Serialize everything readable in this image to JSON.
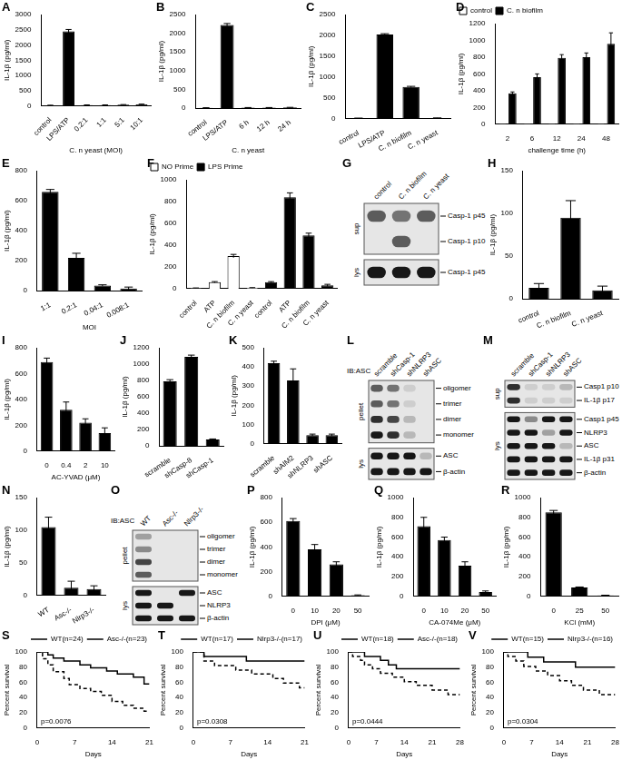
{
  "chart_data": [
    {
      "title": "A",
      "type": "bar",
      "categories": [
        "control",
        "LPS/ATP",
        "0.2:1",
        "1:1",
        "5:1",
        "10:1"
      ],
      "values": [
        20,
        2450,
        30,
        30,
        40,
        50
      ],
      "errors": [
        5,
        60,
        5,
        5,
        5,
        10
      ],
      "color": "#000000",
      "xlabel": "C. n yeast (MOI)",
      "ylabel": "IL-1β (pg/ml)",
      "ylim": [
        0,
        3000
      ],
      "yticks": [
        0,
        500,
        1000,
        1500,
        2000,
        2500,
        3000
      ],
      "grid": false
    },
    {
      "title": "B",
      "type": "bar",
      "categories": [
        "control",
        "LPS/ATP",
        "6 h",
        "12 h",
        "24 h"
      ],
      "values": [
        10,
        2220,
        15,
        15,
        20
      ],
      "errors": [
        3,
        40,
        3,
        3,
        3
      ],
      "color": "#000000",
      "xlabel": "C. n yeast",
      "ylabel": "IL-1β (pg/ml)",
      "ylim": [
        0,
        2500
      ],
      "yticks": [
        0,
        500,
        1000,
        1500,
        2000,
        2500
      ],
      "grid": false
    },
    {
      "title": "C",
      "type": "bar",
      "categories": [
        "control",
        "LPS/ATP",
        "C. n biofilm",
        "C. n yeast"
      ],
      "values": [
        10,
        2020,
        760,
        15
      ],
      "errors": [
        3,
        20,
        15,
        3
      ],
      "color": "#000000",
      "ylabel": "IL-1β (pg/ml)",
      "ylim": [
        0,
        2500
      ],
      "yticks": [
        0,
        500,
        1000,
        1500,
        2000,
        2500
      ],
      "grid": false
    },
    {
      "title": "D",
      "type": "bar",
      "categories": [
        "2",
        "6",
        "12",
        "24",
        "48"
      ],
      "series": [
        {
          "name": "control",
          "color": "#ffffff",
          "values": [
            5,
            5,
            5,
            5,
            5
          ],
          "errors": [
            0,
            0,
            0,
            0,
            0
          ]
        },
        {
          "name": "C. n biofilm",
          "color": "#000000",
          "values": [
            370,
            560,
            790,
            800,
            960
          ],
          "errors": [
            15,
            40,
            40,
            50,
            130
          ]
        }
      ],
      "xlabel": "challenge time (h)",
      "ylabel": "IL-1β (pg/ml)",
      "ylim": [
        0,
        1200
      ],
      "yticks": [
        0,
        200,
        400,
        600,
        800,
        1000,
        1200
      ],
      "grid": false,
      "legend": "upper left"
    },
    {
      "title": "E",
      "type": "bar",
      "categories": [
        "1:1",
        "0.2:1",
        "0.04:1",
        "0.008:1"
      ],
      "values": [
        660,
        220,
        35,
        15
      ],
      "errors": [
        15,
        30,
        5,
        10
      ],
      "color": "#000000",
      "xlabel": "MOI",
      "ylabel": "IL-1β (pg/ml)",
      "ylim": [
        0,
        800
      ],
      "yticks": [
        0,
        200,
        400,
        600,
        800
      ],
      "grid": false
    },
    {
      "title": "F",
      "type": "bar",
      "categories": [
        "control",
        "ATP",
        "C. n biofilm",
        "C. n yeast",
        "control",
        "ATP",
        "C. n biofilm",
        "C. n yeast"
      ],
      "series": [
        {
          "name": "NO Prime",
          "color": "#ffffff",
          "values": [
            5,
            60,
            300,
            8,
            null,
            null,
            null,
            null
          ],
          "errors": [
            2,
            5,
            15,
            2,
            null,
            null,
            null,
            null
          ]
        },
        {
          "name": "LPS Prime",
          "color": "#000000",
          "values": [
            null,
            null,
            null,
            null,
            60,
            840,
            490,
            30
          ],
          "errors": [
            null,
            null,
            null,
            null,
            5,
            40,
            20,
            10
          ]
        }
      ],
      "ylabel": "IL-1β (pg/ml)",
      "ylim": [
        0,
        1000
      ],
      "yticks": [
        0,
        200,
        400,
        600,
        800,
        1000
      ],
      "grid": false,
      "legend": "upper left"
    },
    {
      "title": "H",
      "type": "bar",
      "categories": [
        "control",
        "C. n biofilm",
        "C. n yeast"
      ],
      "values": [
        13,
        95,
        10
      ],
      "errors": [
        5,
        20,
        5
      ],
      "color": "#000000",
      "ylabel": "IL-1β (pg/ml)",
      "ylim": [
        0,
        150
      ],
      "yticks": [
        0,
        50,
        100,
        150
      ],
      "grid": false
    },
    {
      "title": "I",
      "type": "bar",
      "categories": [
        "0",
        "0.4",
        "2",
        "10"
      ],
      "values": [
        690,
        320,
        220,
        140
      ],
      "errors": [
        30,
        60,
        30,
        40
      ],
      "color": "#000000",
      "xlabel": "AC-YVAD (μM)",
      "ylabel": "IL-1β (pg/ml)",
      "ylim": [
        0,
        800
      ],
      "yticks": [
        0,
        200,
        400,
        600,
        800
      ],
      "grid": false
    },
    {
      "title": "J",
      "type": "bar",
      "categories": [
        "scramble",
        "shCasp-8",
        "shCasp-1"
      ],
      "values": [
        790,
        1090,
        80
      ],
      "errors": [
        20,
        20,
        5
      ],
      "color": "#000000",
      "ylabel": "IL-1β (pg/ml)",
      "ylim": [
        0,
        1200
      ],
      "yticks": [
        0,
        200,
        400,
        600,
        800,
        1000,
        1200
      ],
      "grid": false
    },
    {
      "title": "K",
      "type": "bar",
      "categories": [
        "scramble",
        "shAIM2",
        "shNLRP3",
        "shASC"
      ],
      "values": [
        420,
        330,
        45,
        45
      ],
      "errors": [
        10,
        60,
        5,
        5
      ],
      "color": "#000000",
      "ylabel": "IL-1β (pg/ml)",
      "ylim": [
        0,
        500
      ],
      "yticks": [
        0,
        100,
        200,
        300,
        400,
        500
      ],
      "grid": false
    },
    {
      "title": "N",
      "type": "bar",
      "categories": [
        "WT",
        "Asc-/-",
        "Nlrp3-/-"
      ],
      "values": [
        105,
        12,
        10
      ],
      "errors": [
        15,
        10,
        5
      ],
      "color": "#000000",
      "ylabel": "IL-1β (pg/ml)",
      "ylim": [
        0,
        150
      ],
      "yticks": [
        0,
        50,
        100,
        150
      ],
      "grid": false
    },
    {
      "title": "P",
      "type": "bar",
      "categories": [
        "0",
        "10",
        "20",
        "50"
      ],
      "values": [
        610,
        380,
        260,
        10
      ],
      "errors": [
        20,
        40,
        20,
        2
      ],
      "color": "#000000",
      "xlabel": "DPI (μM)",
      "ylabel": "IL-1β (pg/ml)",
      "ylim": [
        0,
        800
      ],
      "yticks": [
        0,
        200,
        400,
        600,
        800
      ],
      "grid": false
    },
    {
      "title": "Q",
      "type": "bar",
      "categories": [
        "0",
        "10",
        "20",
        "50"
      ],
      "values": [
        710,
        570,
        310,
        45
      ],
      "errors": [
        90,
        30,
        40,
        10
      ],
      "color": "#000000",
      "xlabel": "CA-074Me (μM)",
      "ylabel": "IL-1β (pg/ml)",
      "ylim": [
        0,
        1000
      ],
      "yticks": [
        0,
        200,
        400,
        600,
        800,
        1000
      ],
      "grid": false
    },
    {
      "title": "R",
      "type": "bar",
      "categories": [
        "0",
        "25",
        "50"
      ],
      "values": [
        850,
        90,
        10
      ],
      "errors": [
        20,
        5,
        2
      ],
      "color": "#000000",
      "xlabel": "KCl (mM)",
      "ylabel": "IL-1β (pg/ml)",
      "ylim": [
        0,
        1000
      ],
      "yticks": [
        0,
        200,
        400,
        600,
        800,
        1000
      ],
      "grid": false
    },
    {
      "title": "S",
      "type": "line",
      "xlabel": "Days",
      "ylabel": "Percent survival",
      "xlim": [
        0,
        21
      ],
      "xticks": [
        0,
        7,
        14,
        21
      ],
      "ylim": [
        0,
        100
      ],
      "yticks": [
        0,
        20,
        40,
        60,
        80,
        100
      ],
      "grid": false,
      "legend": "upper right",
      "annotation": "p=0.0076",
      "series": [
        {
          "name": "WT(n=24)",
          "color": "#000000",
          "line_style": "solid",
          "x": [
            0,
            2,
            3,
            5,
            8,
            10,
            13,
            15,
            18,
            20,
            21
          ],
          "values": [
            100,
            96,
            92,
            88,
            83,
            79,
            75,
            71,
            67,
            58,
            58
          ]
        },
        {
          "name": "Asc-/-(n=23)",
          "color": "#000000",
          "line_style": "dashed",
          "x": [
            0,
            1,
            2,
            3,
            5,
            6,
            8,
            10,
            12,
            14,
            16,
            18,
            20,
            21
          ],
          "values": [
            100,
            91,
            83,
            74,
            65,
            57,
            52,
            48,
            43,
            35,
            30,
            26,
            22,
            22
          ]
        }
      ]
    },
    {
      "title": "T",
      "type": "line",
      "xlabel": "Days",
      "ylabel": "Percent survival",
      "xlim": [
        0,
        21
      ],
      "xticks": [
        0,
        7,
        14,
        21
      ],
      "ylim": [
        0,
        100
      ],
      "yticks": [
        0,
        20,
        40,
        60,
        80,
        100
      ],
      "grid": false,
      "legend": "upper right",
      "annotation": "p=0.0308",
      "series": [
        {
          "name": "WT(n=17)",
          "color": "#000000",
          "line_style": "solid",
          "x": [
            0,
            2,
            10,
            21
          ],
          "values": [
            100,
            94,
            88,
            88
          ]
        },
        {
          "name": "Nlrp3-/-(n=17)",
          "color": "#000000",
          "line_style": "dashed",
          "x": [
            0,
            2,
            4,
            8,
            11,
            15,
            17,
            20,
            21
          ],
          "values": [
            100,
            88,
            82,
            76,
            71,
            65,
            59,
            53,
            53
          ]
        }
      ]
    },
    {
      "title": "U",
      "type": "line",
      "xlabel": "Days",
      "ylabel": "Percent survival",
      "xlim": [
        0,
        28
      ],
      "xticks": [
        0,
        7,
        14,
        21,
        28
      ],
      "ylim": [
        0,
        100
      ],
      "yticks": [
        0,
        20,
        40,
        60,
        80,
        100
      ],
      "grid": false,
      "legend": "upper right",
      "annotation": "p=0.0444",
      "series": [
        {
          "name": "WT(n=18)",
          "color": "#000000",
          "line_style": "solid",
          "x": [
            0,
            4,
            8,
            10,
            12,
            28
          ],
          "values": [
            100,
            94,
            89,
            83,
            78,
            78
          ]
        },
        {
          "name": "Asc-/-(n=18)",
          "color": "#000000",
          "line_style": "dashed",
          "x": [
            0,
            1,
            3,
            4,
            6,
            8,
            11,
            14,
            17,
            21,
            25,
            28
          ],
          "values": [
            100,
            94,
            89,
            83,
            78,
            72,
            67,
            61,
            56,
            50,
            44,
            44
          ]
        }
      ]
    },
    {
      "title": "V",
      "type": "line",
      "xlabel": "Days",
      "ylabel": "Percent survival",
      "xlim": [
        0,
        28
      ],
      "xticks": [
        0,
        7,
        14,
        21,
        28
      ],
      "ylim": [
        0,
        100
      ],
      "yticks": [
        0,
        20,
        40,
        60,
        80,
        100
      ],
      "grid": false,
      "legend": "upper right",
      "annotation": "p=0.0304",
      "series": [
        {
          "name": "WT(n=15)",
          "color": "#000000",
          "line_style": "solid",
          "x": [
            0,
            6,
            10,
            18,
            28
          ],
          "values": [
            100,
            93,
            87,
            80,
            80
          ]
        },
        {
          "name": "Nlrp3-/-(n=16)",
          "color": "#000000",
          "line_style": "dashed",
          "x": [
            0,
            1,
            3,
            5,
            8,
            11,
            14,
            17,
            20,
            24,
            28
          ],
          "values": [
            100,
            94,
            88,
            81,
            75,
            69,
            62,
            56,
            50,
            44,
            44
          ]
        }
      ]
    }
  ],
  "blots": [
    {
      "title": "G",
      "lanes": [
        "control",
        "C. n biofilm",
        "C. n yeast"
      ],
      "blocks": [
        {
          "section": "sup",
          "rows": [
            {
              "label": "Casp-1 p45",
              "bands": [
                0.6,
                0.5,
                0.6
              ]
            },
            {
              "label": "Casp-1 p10",
              "bands": [
                0,
                0.6,
                0
              ]
            }
          ]
        },
        {
          "section": "lys",
          "rows": [
            {
              "label": "Casp-1 p45",
              "bands": [
                0.9,
                0.9,
                0.9
              ]
            }
          ]
        }
      ]
    },
    {
      "title": "L",
      "header": "IB:ASC",
      "lanes": [
        "scramble",
        "shCasp-1",
        "shNLRP3",
        "shASC"
      ],
      "blocks": [
        {
          "section": "pellet",
          "rows": [
            {
              "label": "oligomer",
              "bands": [
                0.6,
                0.5,
                0.1,
                0
              ]
            },
            {
              "label": "trimer",
              "bands": [
                0.6,
                0.5,
                0.1,
                0
              ]
            },
            {
              "label": "dimer",
              "bands": [
                0.8,
                0.7,
                0.2,
                0
              ]
            },
            {
              "label": "monomer",
              "bands": [
                0.9,
                0.8,
                0.2,
                0
              ]
            }
          ]
        },
        {
          "section": "lys",
          "rows": [
            {
              "label": "ASC",
              "bands": [
                0.9,
                0.9,
                0.9,
                0.2
              ]
            },
            {
              "label": "β-actin",
              "bands": [
                0.9,
                0.9,
                0.9,
                0.9
              ]
            }
          ]
        }
      ]
    },
    {
      "title": "M",
      "lanes": [
        "scramble",
        "shCasp-1",
        "shNLRP3",
        "shASC"
      ],
      "blocks": [
        {
          "section": "sup",
          "rows": [
            {
              "label": "Casp1 p10",
              "bands": [
                0.8,
                0.1,
                0.1,
                0.2
              ]
            },
            {
              "label": "IL-1β p17",
              "bands": [
                0.8,
                0.1,
                0.1,
                0.1
              ]
            }
          ]
        },
        {
          "section": "lys",
          "rows": [
            {
              "label": "Casp1 p45",
              "bands": [
                0.9,
                0.4,
                0.9,
                0.9
              ]
            },
            {
              "label": "NLRP3",
              "bands": [
                0.9,
                0.9,
                0.3,
                0.9
              ]
            },
            {
              "label": "ASC",
              "bands": [
                0.9,
                0.9,
                0.9,
                0.2
              ]
            },
            {
              "label": "IL-1β p31",
              "bands": [
                0.9,
                0.9,
                0.9,
                0.9
              ]
            },
            {
              "label": "β-actin",
              "bands": [
                0.9,
                0.9,
                0.9,
                0.9
              ]
            }
          ]
        }
      ]
    },
    {
      "title": "O",
      "header": "IB:ASC",
      "lanes": [
        "WT",
        "Asc-/-",
        "Nlrp3-/-"
      ],
      "blocks": [
        {
          "section": "pellet",
          "rows": [
            {
              "label": "oligomer",
              "bands": [
                0.3,
                0,
                0
              ]
            },
            {
              "label": "trimer",
              "bands": [
                0.4,
                0,
                0
              ]
            },
            {
              "label": "dimer",
              "bands": [
                0.7,
                0,
                0
              ]
            },
            {
              "label": "monomer",
              "bands": [
                0.6,
                0,
                0
              ]
            }
          ]
        },
        {
          "section": "lys",
          "rows": [
            {
              "label": "ASC",
              "bands": [
                0.9,
                0,
                0.9
              ]
            },
            {
              "label": "NLRP3",
              "bands": [
                0.9,
                0.9,
                0
              ]
            },
            {
              "label": "β-actin",
              "bands": [
                0.9,
                0.9,
                0.9
              ]
            }
          ]
        }
      ]
    }
  ]
}
